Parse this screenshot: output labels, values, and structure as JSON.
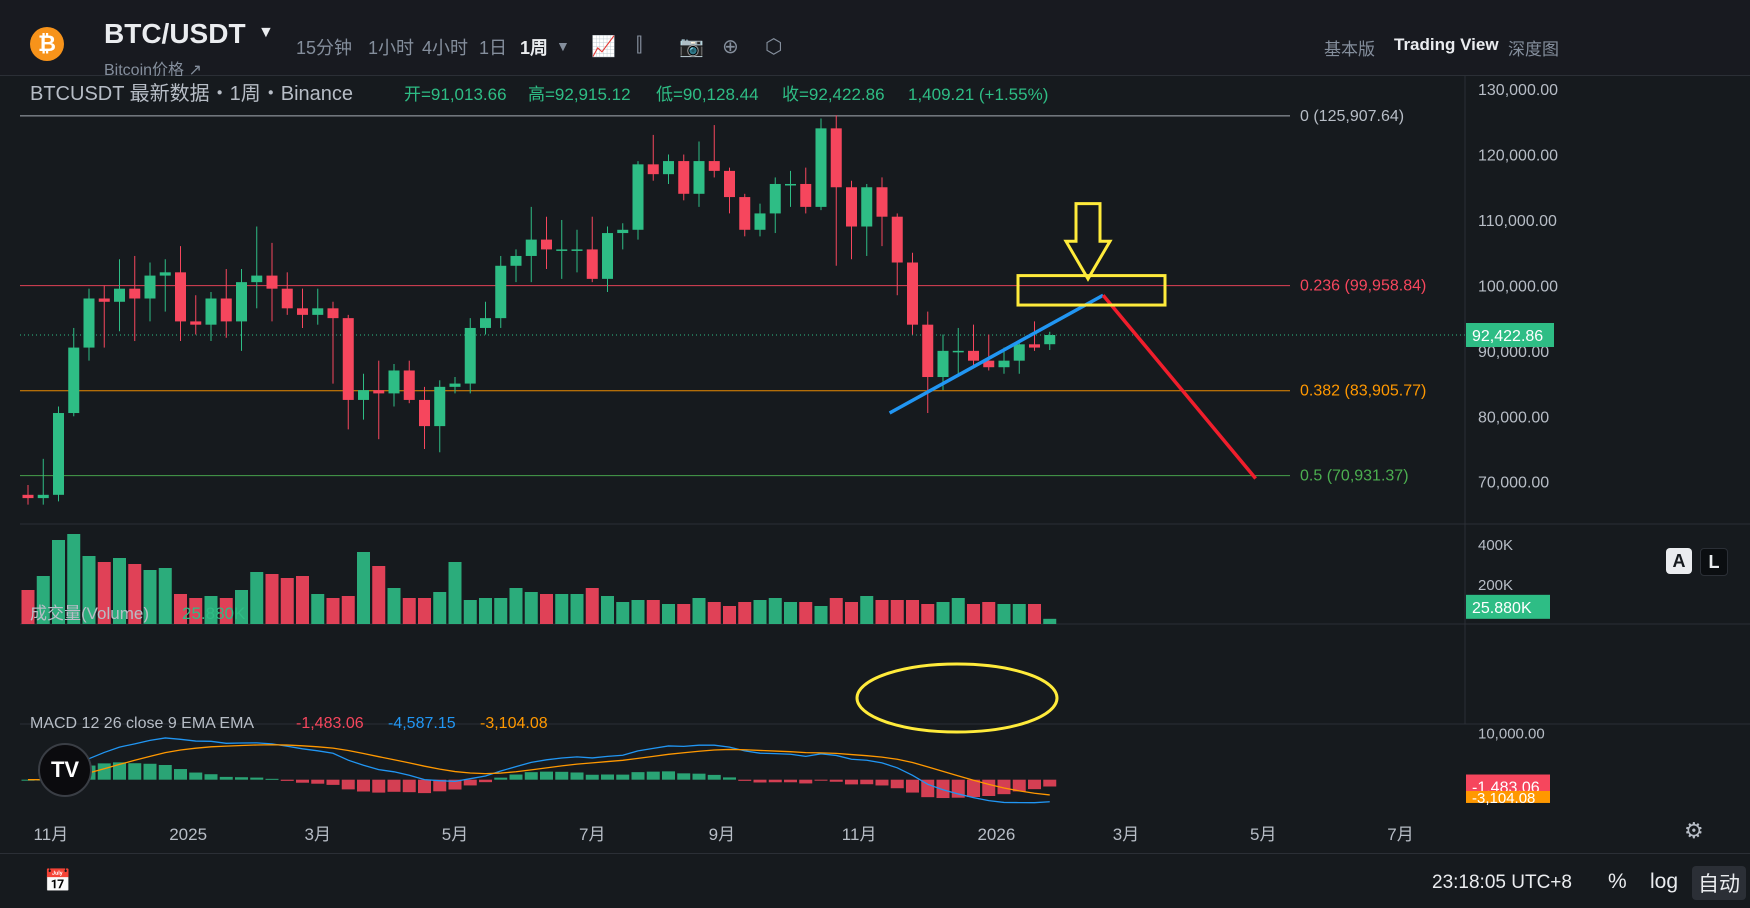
{
  "header": {
    "coin_glyph": "₿",
    "pair": "BTC/USDT",
    "subtitle": "Bitcoin价格 ↗",
    "timeframes": [
      "15分钟",
      "1小时",
      "4小时",
      "1日",
      "1周"
    ],
    "active_timeframe": "1周",
    "views": [
      "基本版",
      "Trading View",
      "深度图"
    ],
    "active_view": "Trading View"
  },
  "legend": {
    "symbol_text": "BTCUSDT 最新数据・1周・Binance",
    "open": "开=91,013.66",
    "high": "高=92,915.12",
    "low": "低=90,128.44",
    "close": "收=92,422.86",
    "change": "1,409.21 (+1.55%)"
  },
  "volume_legend": {
    "label": "成交量(Volume)",
    "value": "25.880K"
  },
  "macd_legend": {
    "label": "MACD 12 26 close 9 EMA EMA",
    "hist": "-1,483.06",
    "macd": "-4,587.15",
    "signal": "-3,104.08"
  },
  "footer": {
    "clock": "23:18:05 UTC+8",
    "percent": "%",
    "log": "log",
    "auto": "自动",
    "auto_label_A": "A",
    "auto_label_L": "L",
    "tv_logo": "TV"
  },
  "colors": {
    "up": "#2ebd85",
    "down": "#f6465d",
    "bg": "#161a1e",
    "grid": "#2b2f36",
    "macd_line": "#2196f3",
    "signal_line": "#ff9800"
  },
  "chart_data": [
    {
      "type": "candlestick",
      "title": "BTCUSDT",
      "interval": "1周",
      "x_tick_labels": [
        "11月",
        "2025",
        "3月",
        "5月",
        "7月",
        "9月",
        "11月",
        "2026",
        "3月",
        "5月",
        "7月"
      ],
      "y_ticks": [
        130000,
        120000,
        110000,
        100000,
        90000,
        80000,
        70000
      ],
      "y_tick_labels": [
        "130,000.00",
        "120,000.00",
        "110,000.00",
        "100,000.00",
        "90,000.00",
        "80,000.00",
        "70,000.00"
      ],
      "ylim": [
        64000,
        132000
      ],
      "last_price": 92422.86,
      "last_price_label": "92,422.86",
      "fib_levels": [
        {
          "label": "0 (125,907.64)",
          "value": 125907.64,
          "color": "#b7bdc6"
        },
        {
          "label": "0.236 (99,958.84)",
          "value": 99958.84,
          "color": "#f6465d"
        },
        {
          "label": "0.382 (83,905.77)",
          "value": 83905.77,
          "color": "#ff9800"
        },
        {
          "label": "0.5 (70,931.37)",
          "value": 70931.37,
          "color": "#4caf50"
        }
      ],
      "candles": [
        {
          "o": 68000,
          "h": 69500,
          "l": 66500,
          "c": 67500
        },
        {
          "o": 67500,
          "h": 73500,
          "l": 66500,
          "c": 68000
        },
        {
          "o": 68000,
          "h": 81500,
          "l": 67000,
          "c": 80500
        },
        {
          "o": 80500,
          "h": 93500,
          "l": 80000,
          "c": 90500
        },
        {
          "o": 90500,
          "h": 99500,
          "l": 88500,
          "c": 98000
        },
        {
          "o": 98000,
          "h": 100000,
          "l": 90500,
          "c": 97500
        },
        {
          "o": 97500,
          "h": 104000,
          "l": 93000,
          "c": 99500
        },
        {
          "o": 99500,
          "h": 104500,
          "l": 91500,
          "c": 98000
        },
        {
          "o": 98000,
          "h": 103500,
          "l": 94500,
          "c": 101500
        },
        {
          "o": 101500,
          "h": 104000,
          "l": 96000,
          "c": 102000
        },
        {
          "o": 102000,
          "h": 106000,
          "l": 91500,
          "c": 94500
        },
        {
          "o": 94500,
          "h": 98500,
          "l": 92500,
          "c": 94000
        },
        {
          "o": 94000,
          "h": 99000,
          "l": 91500,
          "c": 98000
        },
        {
          "o": 98000,
          "h": 102500,
          "l": 92000,
          "c": 94500
        },
        {
          "o": 94500,
          "h": 102500,
          "l": 90000,
          "c": 100500
        },
        {
          "o": 100500,
          "h": 109000,
          "l": 96500,
          "c": 101500
        },
        {
          "o": 101500,
          "h": 106500,
          "l": 94500,
          "c": 99500
        },
        {
          "o": 99500,
          "h": 102000,
          "l": 95500,
          "c": 96500
        },
        {
          "o": 96500,
          "h": 99500,
          "l": 93500,
          "c": 95500
        },
        {
          "o": 95500,
          "h": 99500,
          "l": 94000,
          "c": 96500
        },
        {
          "o": 96500,
          "h": 97500,
          "l": 85000,
          "c": 95000
        },
        {
          "o": 95000,
          "h": 95500,
          "l": 78000,
          "c": 82500
        },
        {
          "o": 82500,
          "h": 86500,
          "l": 79500,
          "c": 84000
        },
        {
          "o": 84000,
          "h": 88500,
          "l": 76500,
          "c": 83500
        },
        {
          "o": 83500,
          "h": 88000,
          "l": 81500,
          "c": 87000
        },
        {
          "o": 87000,
          "h": 88500,
          "l": 82000,
          "c": 82500
        },
        {
          "o": 82500,
          "h": 84500,
          "l": 75000,
          "c": 78500
        },
        {
          "o": 78500,
          "h": 85500,
          "l": 74500,
          "c": 84500
        },
        {
          "o": 84500,
          "h": 86000,
          "l": 83500,
          "c": 85000
        },
        {
          "o": 85000,
          "h": 95000,
          "l": 83500,
          "c": 93500
        },
        {
          "o": 93500,
          "h": 97500,
          "l": 92500,
          "c": 95000
        },
        {
          "o": 95000,
          "h": 104500,
          "l": 93500,
          "c": 103000
        },
        {
          "o": 103000,
          "h": 105500,
          "l": 100500,
          "c": 104500
        },
        {
          "o": 104500,
          "h": 112000,
          "l": 100500,
          "c": 107000
        },
        {
          "o": 107000,
          "h": 110500,
          "l": 102500,
          "c": 105500
        },
        {
          "o": 105500,
          "h": 110000,
          "l": 101000,
          "c": 105500
        },
        {
          "o": 105500,
          "h": 108500,
          "l": 102000,
          "c": 105500
        },
        {
          "o": 105500,
          "h": 110500,
          "l": 100500,
          "c": 101000
        },
        {
          "o": 101000,
          "h": 109000,
          "l": 99000,
          "c": 108000
        },
        {
          "o": 108000,
          "h": 109500,
          "l": 105500,
          "c": 108500
        },
        {
          "o": 108500,
          "h": 119000,
          "l": 107000,
          "c": 118500
        },
        {
          "o": 118500,
          "h": 123000,
          "l": 116000,
          "c": 117000
        },
        {
          "o": 117000,
          "h": 120000,
          "l": 115500,
          "c": 119000
        },
        {
          "o": 119000,
          "h": 120000,
          "l": 113000,
          "c": 114000
        },
        {
          "o": 114000,
          "h": 122000,
          "l": 112000,
          "c": 119000
        },
        {
          "o": 119000,
          "h": 124500,
          "l": 116500,
          "c": 117500
        },
        {
          "o": 117500,
          "h": 118000,
          "l": 111000,
          "c": 113500
        },
        {
          "o": 113500,
          "h": 114000,
          "l": 107500,
          "c": 108500
        },
        {
          "o": 108500,
          "h": 112500,
          "l": 107500,
          "c": 111000
        },
        {
          "o": 111000,
          "h": 116500,
          "l": 108000,
          "c": 115500
        },
        {
          "o": 115500,
          "h": 117500,
          "l": 112000,
          "c": 115500
        },
        {
          "o": 115500,
          "h": 118000,
          "l": 111000,
          "c": 112000
        },
        {
          "o": 112000,
          "h": 125500,
          "l": 111500,
          "c": 124000
        },
        {
          "o": 124000,
          "h": 126000,
          "l": 103000,
          "c": 115000
        },
        {
          "o": 115000,
          "h": 116000,
          "l": 104000,
          "c": 109000
        },
        {
          "o": 109000,
          "h": 115500,
          "l": 104500,
          "c": 115000
        },
        {
          "o": 115000,
          "h": 116500,
          "l": 106000,
          "c": 110500
        },
        {
          "o": 110500,
          "h": 111000,
          "l": 98500,
          "c": 103500
        },
        {
          "o": 103500,
          "h": 105000,
          "l": 92500,
          "c": 94000
        },
        {
          "o": 94000,
          "h": 96000,
          "l": 80500,
          "c": 86000
        },
        {
          "o": 86000,
          "h": 92500,
          "l": 84000,
          "c": 90000
        },
        {
          "o": 90000,
          "h": 93500,
          "l": 86500,
          "c": 90000
        },
        {
          "o": 90000,
          "h": 94000,
          "l": 87500,
          "c": 88500
        },
        {
          "o": 88500,
          "h": 92500,
          "l": 87000,
          "c": 87500
        },
        {
          "o": 87500,
          "h": 90500,
          "l": 86500,
          "c": 88500
        },
        {
          "o": 88500,
          "h": 91500,
          "l": 86500,
          "c": 91000
        },
        {
          "o": 91000,
          "h": 94500,
          "l": 90000,
          "c": 90500
        },
        {
          "o": 91013.66,
          "h": 92915.12,
          "l": 90128.44,
          "c": 92422.86
        }
      ]
    },
    {
      "type": "bar",
      "title": "成交量(Volume)",
      "y_tick_labels": [
        "400K",
        "200K"
      ],
      "y_ticks": [
        400000,
        200000
      ],
      "ylim": [
        0,
        480000
      ],
      "last_label": "25.880K",
      "values": [
        170,
        240,
        420,
        450,
        340,
        310,
        330,
        300,
        270,
        280,
        150,
        130,
        140,
        130,
        170,
        260,
        250,
        230,
        240,
        150,
        130,
        140,
        360,
        290,
        180,
        130,
        130,
        160,
        310,
        120,
        130,
        130,
        180,
        160,
        150,
        150,
        150,
        180,
        140,
        110,
        120,
        120,
        100,
        100,
        130,
        110,
        90,
        110,
        120,
        130,
        110,
        110,
        90,
        130,
        110,
        140,
        120,
        120,
        120,
        100,
        110,
        130,
        100,
        110,
        100,
        100,
        100,
        25.88
      ]
    },
    {
      "type": "macd",
      "title": "MACD 12 26 close 9 EMA EMA",
      "y_tick_labels": [
        "10,000.00"
      ],
      "y_ticks": [
        10000
      ],
      "ylim": [
        -9000,
        11000
      ],
      "hist_label": "-1,483.06",
      "signal_label": "-3,104.08"
    }
  ],
  "annotations": {
    "up_arrow_color": "#ffeb3b",
    "box_color": "#ffeb3b",
    "trend_up_color": "#2196f3",
    "trend_down_color": "#f01e2c",
    "ellipse_color": "#ffeb3b"
  }
}
